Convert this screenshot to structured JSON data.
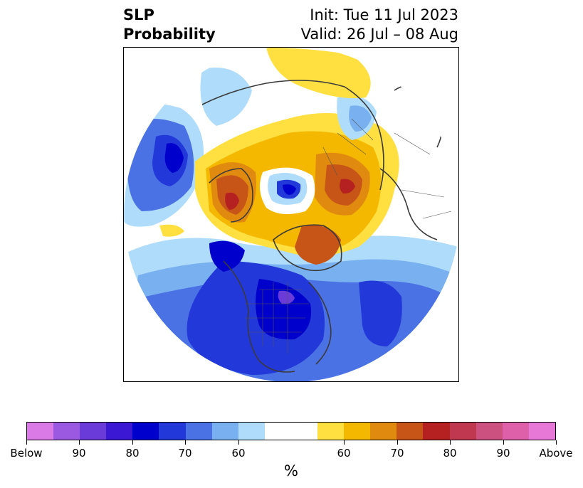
{
  "title": {
    "left_line1": "SLP",
    "left_line2": "Probability",
    "right_line1": "Init: Tue 11 Jul 2023",
    "right_line2": "Valid: 26 Jul – 08 Aug"
  },
  "colorbar": {
    "unit": "%",
    "colors": [
      "#d97ae6",
      "#9b58e0",
      "#6b3bd9",
      "#3a18d4",
      "#0000cc",
      "#2238d8",
      "#4b72e4",
      "#79b0f0",
      "#aedcfa",
      "#ffffff",
      "#ffffff",
      "#ffe040",
      "#f5b800",
      "#e08a10",
      "#c85518",
      "#b52020",
      "#c03850",
      "#cc5080",
      "#dd60a8",
      "#e878d8"
    ],
    "tick_labels": [
      "Below",
      "90",
      "80",
      "70",
      "60",
      "60",
      "70",
      "80",
      "90",
      "Above"
    ]
  },
  "map": {
    "region": "Northern Hemisphere polar projection",
    "colors": {
      "deep_blue": "#0000cc",
      "mid_blue": "#2238d8",
      "blue": "#4b72e4",
      "light_blue": "#79b0f0",
      "pale_blue": "#aedcfa",
      "yellow": "#ffe040",
      "gold": "#f5b800",
      "orange": "#e08a10",
      "dark_orange": "#c85518",
      "red": "#b52020",
      "purple": "#6b3bd9"
    }
  }
}
